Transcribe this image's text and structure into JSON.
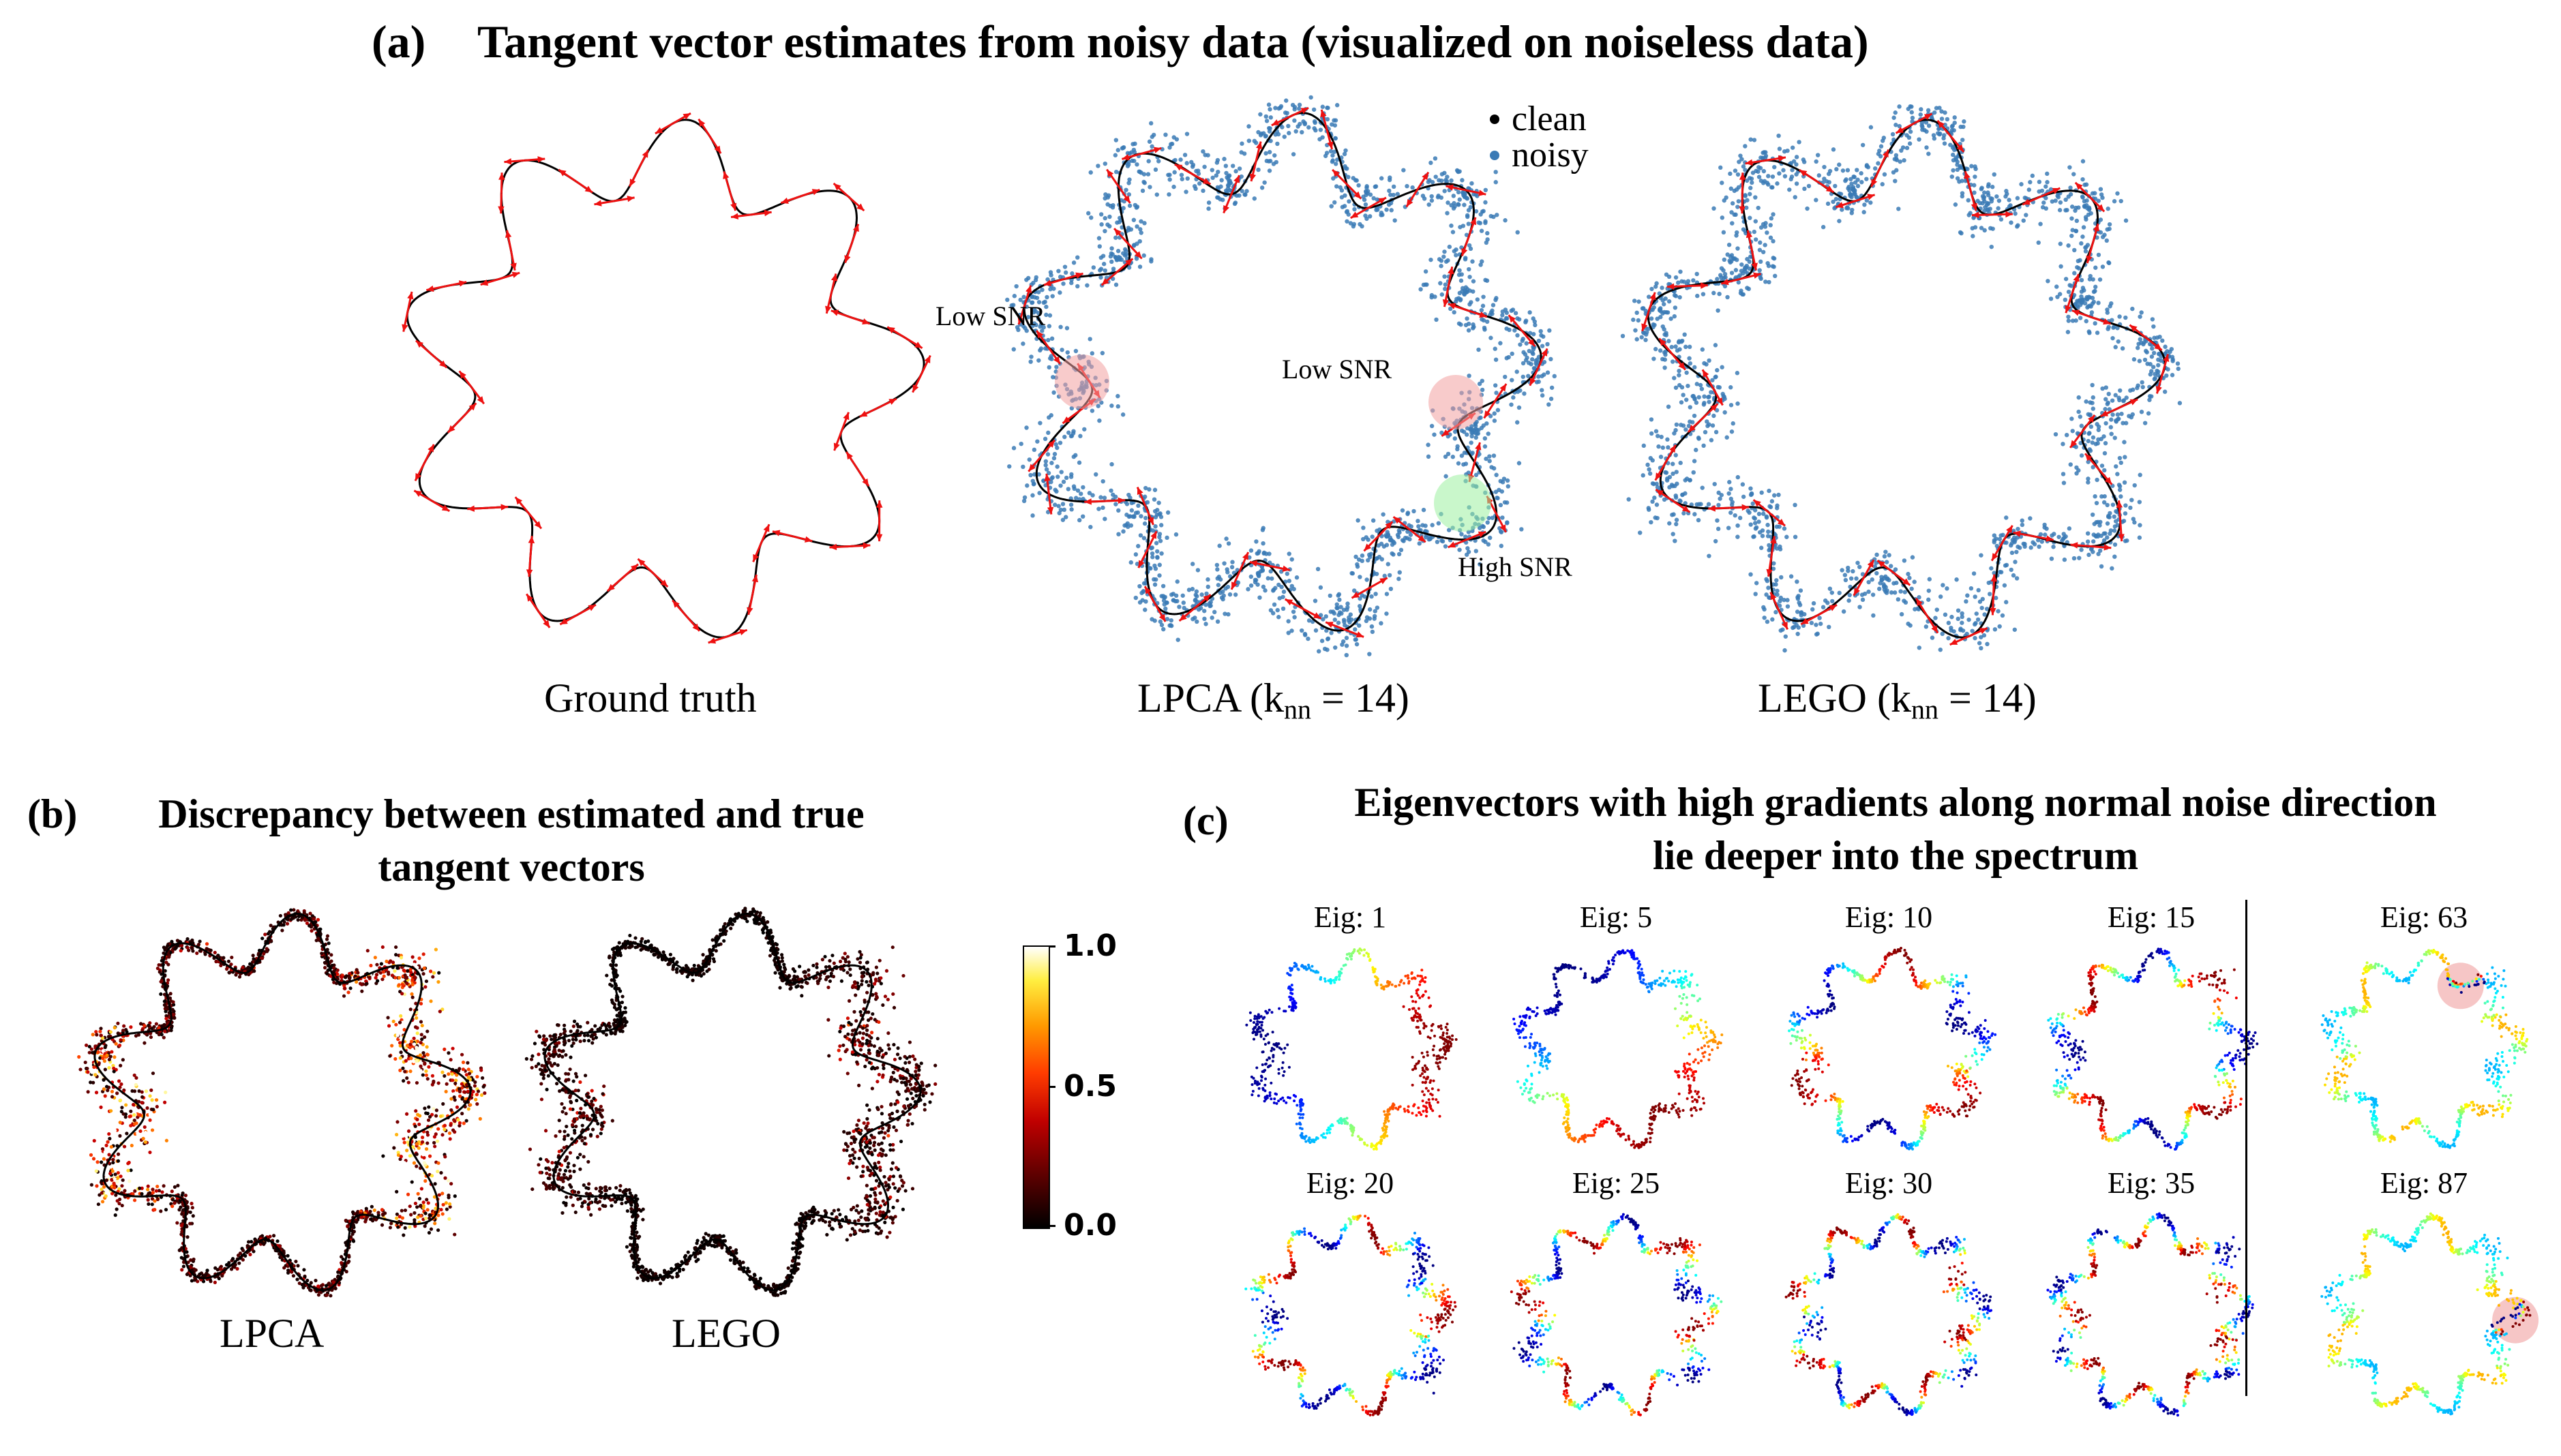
{
  "colors": {
    "curve": "#000000",
    "arrow": "#ee1111",
    "noisy": "#3a7ab5",
    "low_snr_marker": "#f3a0a0",
    "high_snr_marker": "#9df0a0",
    "eig_highlight": "#f0a0a0"
  },
  "panel_a": {
    "label": "(a)",
    "title": "Tangent vector estimates from noisy data (visualized on noiseless data)",
    "legend": {
      "clean": "clean",
      "noisy": "noisy"
    },
    "captions": {
      "ground_truth": "Ground truth",
      "lpca_main": "LPCA (k",
      "lpca_sub": "nn",
      "lpca_tail": " = 14)",
      "lego_main": "LEGO (k",
      "lego_sub": "nn",
      "lego_tail": " = 14)"
    },
    "annotations": {
      "low_snr_1": "Low SNR",
      "low_snr_2": "Low SNR",
      "high_snr": "High SNR"
    }
  },
  "panel_b": {
    "label": "(b)",
    "title_line1": "Discrepancy between estimated and true",
    "title_line2": "tangent vectors",
    "captions": {
      "lpca": "LPCA",
      "lego": "LEGO"
    },
    "colorbar": {
      "max": "1.0",
      "mid": "0.5",
      "min": "0.0"
    }
  },
  "panel_c": {
    "label": "(c)",
    "title_line1": "Eigenvectors with high gradients along normal noise direction",
    "title_line2": "lie deeper into the spectrum",
    "eig_labels": [
      "Eig: 1",
      "Eig: 5",
      "Eig: 10",
      "Eig: 15",
      "Eig: 63",
      "Eig: 20",
      "Eig: 25",
      "Eig: 30",
      "Eig: 35",
      "Eig: 87"
    ]
  }
}
